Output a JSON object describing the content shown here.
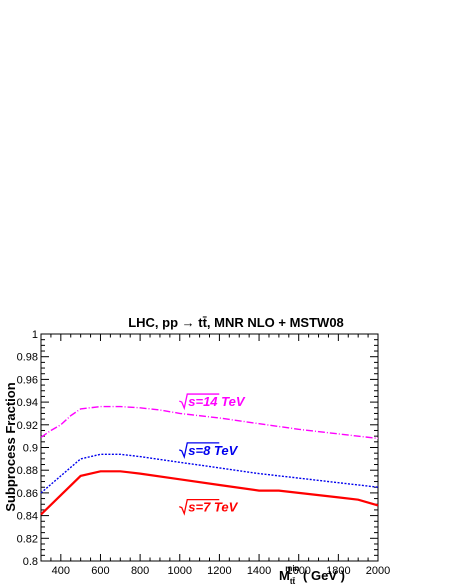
{
  "chart_data": {
    "type": "line",
    "title": "LHC, pp → tt̄, MNR NLO + MSTW08",
    "xlabel": "M_tt^min ( GeV )",
    "xlabel_parts": {
      "main": "M",
      "sup": "min",
      "sub": "tt̄",
      "unit": " ( GeV )"
    },
    "ylabel": "Subprocess Fraction",
    "xlim": [
      300,
      2000
    ],
    "ylim": [
      0.8,
      1.0
    ],
    "x_ticks": [
      400,
      600,
      800,
      1000,
      1200,
      1400,
      1600,
      1800,
      2000
    ],
    "x_tick_labels": [
      "400",
      "600",
      "800",
      "1000",
      "1200",
      "1400",
      "1600",
      "1800",
      "2000"
    ],
    "y_ticks": [
      0.8,
      0.82,
      0.84,
      0.86,
      0.88,
      0.9,
      0.92,
      0.94,
      0.96,
      0.98,
      1.0
    ],
    "y_tick_labels": [
      "0.8",
      "0.82",
      "0.84",
      "0.86",
      "0.88",
      "0.9",
      "0.92",
      "0.94",
      "0.96",
      "0.98",
      "1"
    ],
    "grid": false,
    "series": [
      {
        "name": "√s=14 TeV",
        "label_text": "s=14 TeV",
        "label_pos": [
          1000,
          0.9365
        ],
        "color": "#ff00ff",
        "dash": "7,2,1,2",
        "width": 1.4,
        "x": [
          300,
          350,
          400,
          450,
          500,
          600,
          700,
          800,
          900,
          1000,
          1200,
          1400,
          1600,
          1800,
          2000
        ],
        "y": [
          0.909,
          0.915,
          0.92,
          0.928,
          0.934,
          0.936,
          0.936,
          0.935,
          0.933,
          0.93,
          0.926,
          0.921,
          0.916,
          0.912,
          0.908
        ]
      },
      {
        "name": "√s=8 TeV",
        "label_text": "s=8 TeV",
        "label_pos": [
          1000,
          0.8935
        ],
        "color": "#0000ee",
        "dash": "2,1.5",
        "width": 1.4,
        "x": [
          300,
          400,
          500,
          600,
          700,
          800,
          1000,
          1200,
          1400,
          1600,
          1800,
          2000
        ],
        "y": [
          0.86,
          0.875,
          0.89,
          0.894,
          0.894,
          0.892,
          0.887,
          0.882,
          0.877,
          0.873,
          0.869,
          0.865
        ]
      },
      {
        "name": "√s=7 TeV",
        "label_text": "s=7 TeV",
        "label_pos": [
          1000,
          0.8435
        ],
        "color": "#ff0000",
        "dash": "",
        "width": 2.2,
        "x": [
          300,
          400,
          500,
          600,
          700,
          800,
          1000,
          1200,
          1400,
          1500,
          1600,
          1800,
          1900,
          2000
        ],
        "y": [
          0.841,
          0.858,
          0.875,
          0.879,
          0.879,
          0.877,
          0.872,
          0.867,
          0.862,
          0.862,
          0.86,
          0.856,
          0.854,
          0.849
        ]
      }
    ]
  }
}
